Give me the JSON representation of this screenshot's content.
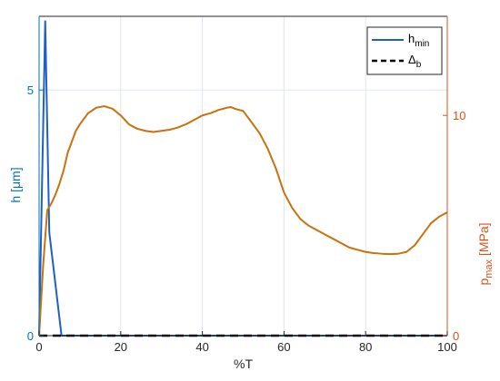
{
  "chart_data": {
    "type": "line",
    "x_axis": {
      "label": "%T",
      "range": [
        0,
        100
      ],
      "ticks": [
        0,
        20,
        40,
        60,
        80,
        100
      ],
      "grid": true
    },
    "y_left": {
      "label": "h [μm]",
      "range": [
        0,
        6.5
      ],
      "ticks": [
        0,
        5
      ],
      "color": "#0072BD"
    },
    "y_right": {
      "label_main": "p",
      "label_sub": "max",
      "label_unit": "[MPa]",
      "range": [
        0,
        14.5
      ],
      "ticks": [
        0,
        10
      ],
      "color": "#D95319"
    },
    "legend": {
      "placement": "top-right",
      "entries": [
        {
          "main": "h",
          "sub": "min"
        },
        {
          "main": "Δ",
          "sub": "b"
        }
      ]
    },
    "series": [
      {
        "key": "h_min",
        "axis": "left",
        "style": "solid",
        "color": "#1F5FC8",
        "x": [
          0,
          1.5,
          2.5,
          4.5,
          5.5,
          100
        ],
        "y": [
          0,
          6.4,
          2.1,
          0.7,
          0,
          0
        ]
      },
      {
        "key": "delta_b",
        "axis": "left",
        "style": "dashed",
        "color": "#000000",
        "x": [
          0,
          100
        ],
        "y": [
          0,
          0
        ]
      },
      {
        "key": "p_max",
        "axis": "right",
        "style": "solid",
        "color": "#C8720E",
        "x": [
          0,
          1,
          2,
          3,
          4,
          5,
          6,
          7,
          8,
          9,
          10,
          12,
          14,
          16,
          18,
          20,
          22,
          24,
          26,
          28,
          30,
          32,
          34,
          36,
          38,
          40,
          42,
          44,
          46,
          47,
          48,
          50,
          52,
          54,
          56,
          58,
          60,
          62,
          64,
          66,
          68,
          70,
          72,
          74,
          76,
          78,
          80,
          82,
          84,
          86,
          88,
          90,
          92,
          94,
          96,
          98,
          100
        ],
        "y": [
          0,
          3.2,
          5.7,
          6.0,
          6.4,
          6.9,
          7.5,
          8.3,
          8.8,
          9.3,
          9.6,
          10.1,
          10.35,
          10.42,
          10.3,
          10.0,
          9.6,
          9.4,
          9.3,
          9.25,
          9.3,
          9.35,
          9.45,
          9.6,
          9.8,
          10.0,
          10.1,
          10.25,
          10.35,
          10.38,
          10.3,
          10.2,
          9.7,
          9.2,
          8.5,
          7.6,
          6.5,
          5.8,
          5.3,
          5.0,
          4.8,
          4.6,
          4.4,
          4.2,
          4.0,
          3.9,
          3.8,
          3.75,
          3.72,
          3.7,
          3.72,
          3.8,
          4.1,
          4.6,
          5.1,
          5.4,
          5.6
        ]
      }
    ]
  }
}
